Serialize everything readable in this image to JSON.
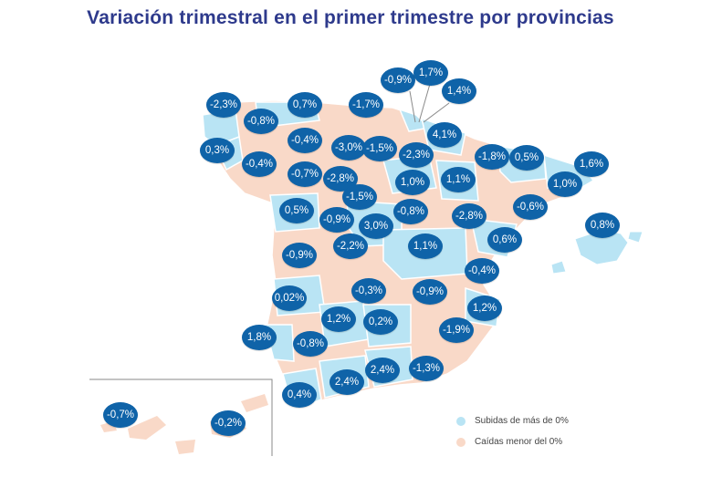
{
  "title": "Variación trimestral en el primer trimestre por provincias",
  "colors": {
    "rise": "#b9e4f4",
    "fall": "#f9d9c8",
    "bubble": "#0f63a8",
    "title": "#2e3a8c"
  },
  "legend": {
    "rise_label": "Subidas de más de 0%",
    "fall_label": "Caídas menor del 0%"
  },
  "provinces": [
    {
      "id": "a-coruna",
      "value": "-2,3%",
      "status": "fall"
    },
    {
      "id": "lugo",
      "value": "-0,8%",
      "status": "fall"
    },
    {
      "id": "pontevedra",
      "value": "0,3%",
      "status": "rise"
    },
    {
      "id": "ourense",
      "value": "-0,4%",
      "status": "fall"
    },
    {
      "id": "asturias",
      "value": "0,7%",
      "status": "rise"
    },
    {
      "id": "leon",
      "value": "-0,4%",
      "status": "fall"
    },
    {
      "id": "zamora",
      "value": "-0,7%",
      "status": "fall"
    },
    {
      "id": "cantabria",
      "value": "-1,7%",
      "status": "fall"
    },
    {
      "id": "palencia",
      "value": "-3,0%",
      "status": "fall"
    },
    {
      "id": "burgos",
      "value": "-1,5%",
      "status": "fall"
    },
    {
      "id": "valladolid",
      "value": "-2,8%",
      "status": "fall"
    },
    {
      "id": "bizkaia",
      "value": "-0,9%",
      "status": "fall"
    },
    {
      "id": "gipuzkoa",
      "value": "1,7%",
      "status": "rise"
    },
    {
      "id": "navarra-label",
      "value": "1,4%",
      "status": "rise"
    },
    {
      "id": "alava",
      "value": "-2,3%",
      "status": "fall"
    },
    {
      "id": "navarra",
      "value": "4,1%",
      "status": "rise"
    },
    {
      "id": "la-rioja",
      "value": "1,0%",
      "status": "rise"
    },
    {
      "id": "soria",
      "value": "1,1%",
      "status": "rise"
    },
    {
      "id": "huesca",
      "value": "-1,8%",
      "status": "fall"
    },
    {
      "id": "lleida",
      "value": "0,5%",
      "status": "rise"
    },
    {
      "id": "girona",
      "value": "1,6%",
      "status": "rise"
    },
    {
      "id": "barcelona",
      "value": "1,0%",
      "status": "rise"
    },
    {
      "id": "tarragona",
      "value": "-0,6%",
      "status": "fall"
    },
    {
      "id": "zaragoza",
      "value": "-2,8%",
      "status": "fall"
    },
    {
      "id": "baleares",
      "value": "0,8%",
      "status": "rise"
    },
    {
      "id": "salamanca",
      "value": "0,5%",
      "status": "rise"
    },
    {
      "id": "avila",
      "value": "-0,9%",
      "status": "fall"
    },
    {
      "id": "segovia",
      "value": "-1,5%",
      "status": "fall"
    },
    {
      "id": "guadalajara",
      "value": "-0,8%",
      "status": "fall"
    },
    {
      "id": "madrid",
      "value": "3,0%",
      "status": "rise"
    },
    {
      "id": "toledo",
      "value": "-2,2%",
      "status": "fall"
    },
    {
      "id": "caceres",
      "value": "-0,9%",
      "status": "fall"
    },
    {
      "id": "cuenca",
      "value": "1,1%",
      "status": "rise"
    },
    {
      "id": "teruel",
      "value": "0,6%",
      "status": "rise"
    },
    {
      "id": "castellon",
      "value": "-0,4%",
      "status": "fall"
    },
    {
      "id": "badajoz",
      "value": "0,02%",
      "status": "rise"
    },
    {
      "id": "ciudad-real",
      "value": "-0,3%",
      "status": "fall"
    },
    {
      "id": "albacete",
      "value": "-0,9%",
      "status": "fall"
    },
    {
      "id": "valencia",
      "value": "1,2%",
      "status": "rise"
    },
    {
      "id": "cordoba",
      "value": "1,2%",
      "status": "rise"
    },
    {
      "id": "jaen",
      "value": "0,2%",
      "status": "rise"
    },
    {
      "id": "murcia",
      "value": "-1,9%",
      "status": "fall"
    },
    {
      "id": "huelva",
      "value": "1,8%",
      "status": "rise"
    },
    {
      "id": "sevilla",
      "value": "-0,8%",
      "status": "fall"
    },
    {
      "id": "cadiz",
      "value": "0,4%",
      "status": "rise"
    },
    {
      "id": "malaga",
      "value": "2,4%",
      "status": "rise"
    },
    {
      "id": "granada",
      "value": "2,4%",
      "status": "rise"
    },
    {
      "id": "almeria",
      "value": "-1,3%",
      "status": "fall"
    },
    {
      "id": "santa-cruz-tenerife",
      "value": "-0,7%",
      "status": "fall"
    },
    {
      "id": "las-palmas",
      "value": "-0,2%",
      "status": "fall"
    }
  ]
}
